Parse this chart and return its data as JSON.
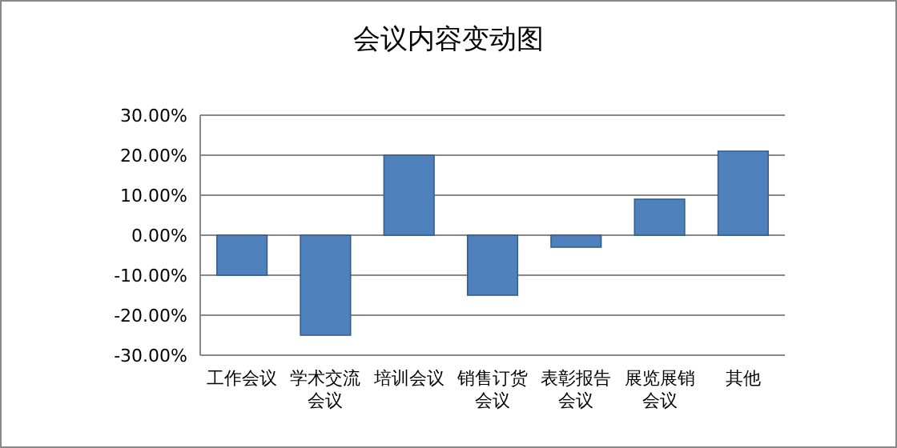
{
  "chart_data": {
    "type": "bar",
    "title": "会议内容变动图",
    "categories": [
      "工作会议",
      "学术交流会议",
      "培训会议",
      "销售订货会议",
      "表彰报告会议",
      "展览展销会议",
      "其他"
    ],
    "values": [
      -10,
      -25,
      20,
      -15,
      -3,
      9,
      21
    ],
    "color": "#4f81bd",
    "ylim": [
      -30,
      30
    ],
    "yticks": [
      {
        "value": -30,
        "label": "-30.00%"
      },
      {
        "value": -20,
        "label": "-20.00%"
      },
      {
        "value": -10,
        "label": "-10.00%"
      },
      {
        "value": 0,
        "label": "0.00%"
      },
      {
        "value": 10,
        "label": "10.00%"
      },
      {
        "value": 20,
        "label": "20.00%"
      },
      {
        "value": 30,
        "label": "30.00%"
      }
    ],
    "grid": "y"
  }
}
